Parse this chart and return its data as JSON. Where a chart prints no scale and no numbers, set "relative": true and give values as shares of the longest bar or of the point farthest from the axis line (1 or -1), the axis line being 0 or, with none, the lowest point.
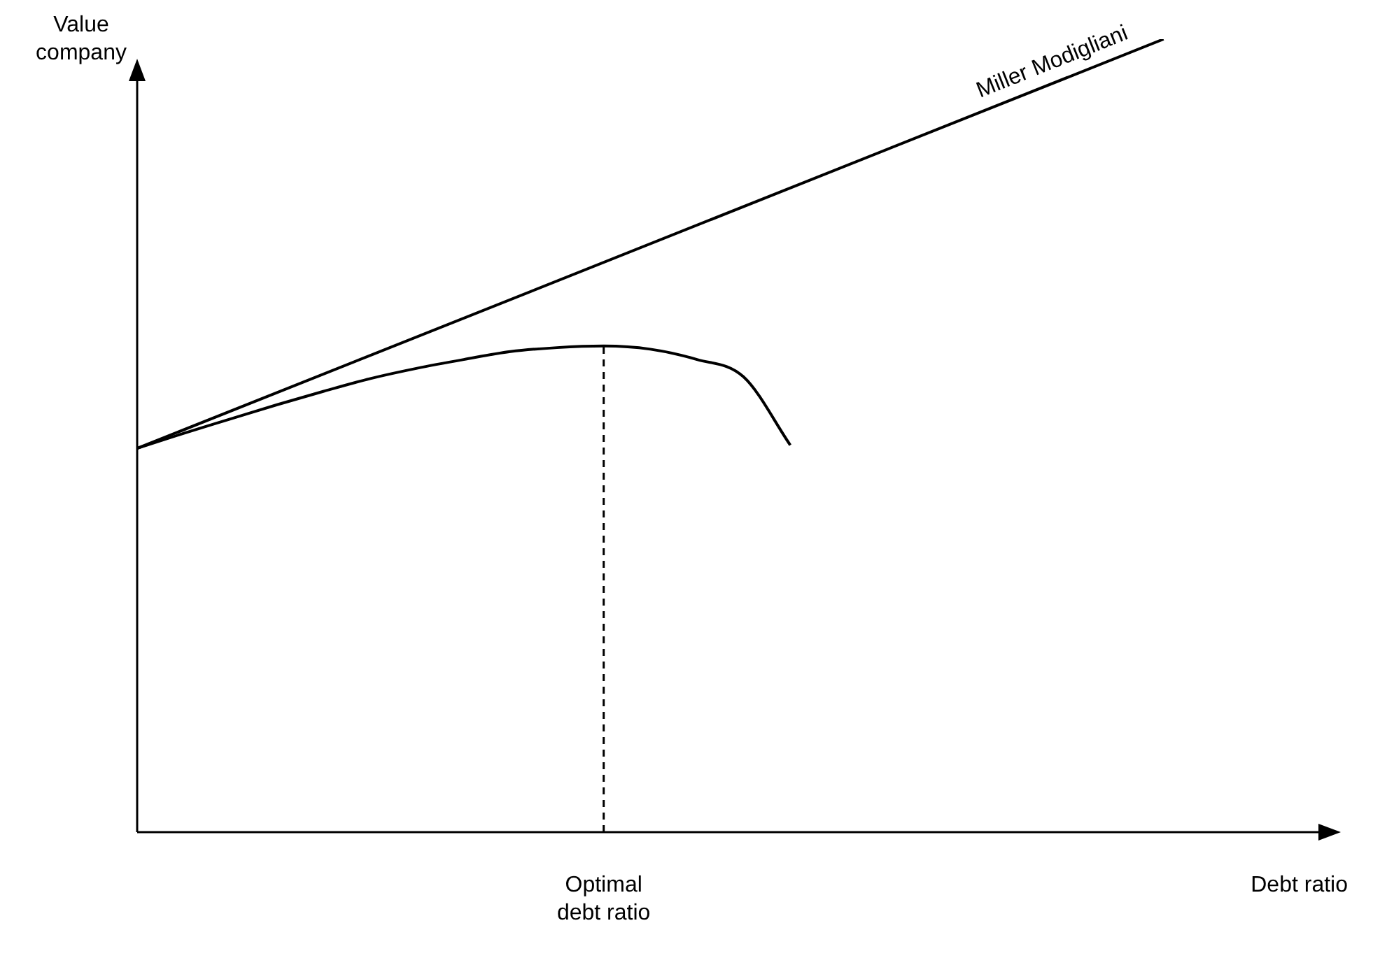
{
  "chart_data": {
    "type": "line",
    "relative": true,
    "xlabel": "Debt ratio",
    "ylabel": "Value company",
    "legend": false,
    "grid": false,
    "marker": "none",
    "categories": [
      null,
      null,
      null,
      null,
      null,
      null,
      null,
      null,
      null,
      null,
      null,
      null,
      null,
      null,
      null,
      null,
      null,
      null,
      null,
      null,
      null,
      null,
      null,
      null,
      null
    ],
    "series": [
      {
        "name": "Miller Modigliani",
        "color": "#000000",
        "values": [
          0.484,
          null,
          null,
          null,
          null,
          null,
          null,
          null,
          null,
          null,
          null,
          null,
          null,
          null,
          null,
          null,
          null,
          null,
          null,
          null,
          null,
          null,
          1,
          null,
          null
        ]
      },
      {
        "color": "#000000",
        "values": [
          0.484,
          0.503,
          0.521,
          0.539,
          0.556,
          0.572,
          0.585,
          0.596,
          0.606,
          0.611,
          0.613,
          0.609,
          0.596,
          0.574,
          0.488,
          null,
          null,
          null,
          null,
          null,
          null,
          null,
          null,
          null,
          null
        ]
      }
    ],
    "annotations": [
      "Optimal\ndebt ratio"
    ]
  }
}
